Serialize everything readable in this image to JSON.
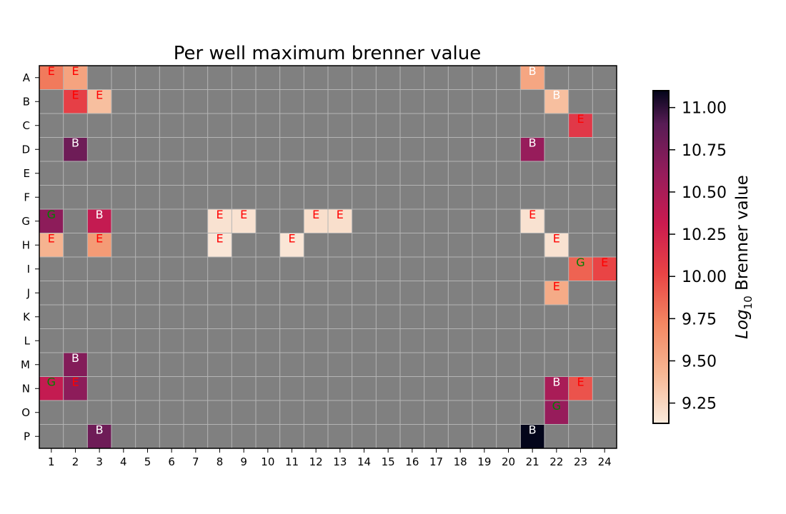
{
  "chart_data": {
    "type": "heatmap",
    "title": "Per well maximum brenner value",
    "rows": [
      "A",
      "B",
      "C",
      "D",
      "E",
      "F",
      "G",
      "H",
      "I",
      "J",
      "K",
      "L",
      "M",
      "N",
      "O",
      "P"
    ],
    "columns": [
      "1",
      "2",
      "3",
      "4",
      "5",
      "6",
      "7",
      "8",
      "9",
      "10",
      "11",
      "12",
      "13",
      "14",
      "15",
      "16",
      "17",
      "18",
      "19",
      "20",
      "21",
      "22",
      "23",
      "24"
    ],
    "missing_color": "#808080",
    "grid_color": "#b4b4b4",
    "colormap": "rocket_r",
    "colorbar": {
      "label_prefix": "Log",
      "label_subscript": "10",
      "label_suffix": " Brenner value",
      "range": [
        9.13,
        11.1
      ],
      "ticks": [
        "9.25",
        "9.50",
        "9.75",
        "10.00",
        "10.25",
        "10.50",
        "10.75",
        "11.00"
      ]
    },
    "cells": [
      {
        "row": "A",
        "col": "1",
        "value": 9.78,
        "mark": "E"
      },
      {
        "row": "A",
        "col": "2",
        "value": 9.55,
        "mark": "E"
      },
      {
        "row": "A",
        "col": "21",
        "value": 9.53,
        "mark": "B"
      },
      {
        "row": "B",
        "col": "2",
        "value": 10.05,
        "mark": "E"
      },
      {
        "row": "B",
        "col": "3",
        "value": 9.38,
        "mark": "E"
      },
      {
        "row": "B",
        "col": "22",
        "value": 9.38,
        "mark": "B"
      },
      {
        "row": "C",
        "col": "23",
        "value": 10.1,
        "mark": "E"
      },
      {
        "row": "D",
        "col": "2",
        "value": 10.8,
        "mark": "B"
      },
      {
        "row": "D",
        "col": "21",
        "value": 10.6,
        "mark": "B"
      },
      {
        "row": "G",
        "col": "1",
        "value": 10.65,
        "mark": "G"
      },
      {
        "row": "G",
        "col": "3",
        "value": 10.35,
        "mark": "B"
      },
      {
        "row": "G",
        "col": "8",
        "value": 9.18,
        "mark": "E"
      },
      {
        "row": "G",
        "col": "9",
        "value": 9.18,
        "mark": "E"
      },
      {
        "row": "G",
        "col": "12",
        "value": 9.2,
        "mark": "E"
      },
      {
        "row": "G",
        "col": "13",
        "value": 9.2,
        "mark": "E"
      },
      {
        "row": "G",
        "col": "21",
        "value": 9.18,
        "mark": "E"
      },
      {
        "row": "H",
        "col": "1",
        "value": 9.45,
        "mark": "E"
      },
      {
        "row": "H",
        "col": "3",
        "value": 9.6,
        "mark": "E"
      },
      {
        "row": "H",
        "col": "8",
        "value": 9.15,
        "mark": "E"
      },
      {
        "row": "H",
        "col": "11",
        "value": 9.16,
        "mark": "E"
      },
      {
        "row": "H",
        "col": "22",
        "value": 9.18,
        "mark": "E"
      },
      {
        "row": "I",
        "col": "23",
        "value": 9.88,
        "mark": "G"
      },
      {
        "row": "I",
        "col": "24",
        "value": 10.02,
        "mark": "E"
      },
      {
        "row": "J",
        "col": "22",
        "value": 9.5,
        "mark": "E"
      },
      {
        "row": "M",
        "col": "2",
        "value": 10.7,
        "mark": "B"
      },
      {
        "row": "N",
        "col": "1",
        "value": 10.35,
        "mark": "G"
      },
      {
        "row": "N",
        "col": "2",
        "value": 10.65,
        "mark": "E"
      },
      {
        "row": "N",
        "col": "22",
        "value": 10.5,
        "mark": "B"
      },
      {
        "row": "N",
        "col": "23",
        "value": 9.95,
        "mark": "E"
      },
      {
        "row": "O",
        "col": "22",
        "value": 10.6,
        "mark": "G"
      },
      {
        "row": "P",
        "col": "3",
        "value": 10.8,
        "mark": "B"
      },
      {
        "row": "P",
        "col": "21",
        "value": 11.1,
        "mark": "B"
      }
    ],
    "mark_colors": {
      "E": "#ff0000",
      "B": "#ffffff",
      "G": "#008000"
    }
  }
}
